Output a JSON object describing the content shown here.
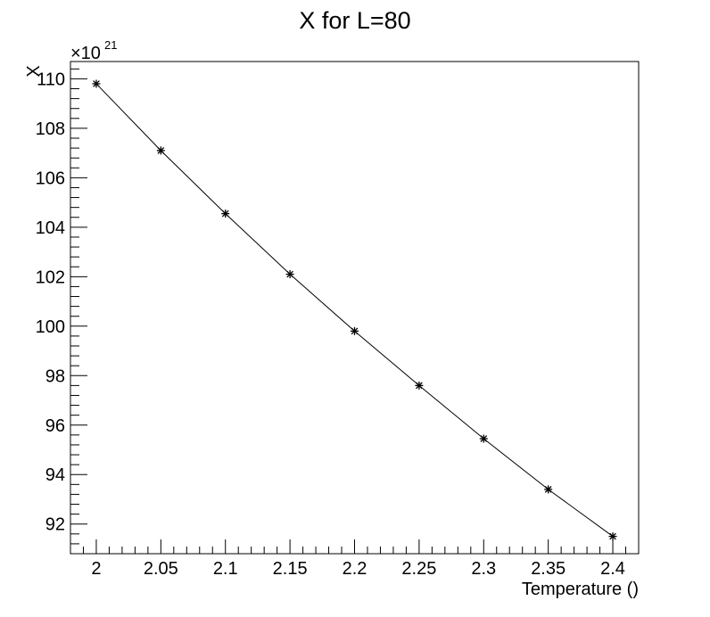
{
  "chart_data": {
    "type": "line",
    "title": "X for L=80",
    "xlabel": "Temperature ()",
    "ylabel": "X",
    "y_exponent_base": "×10",
    "y_exponent_power": "21",
    "x": [
      2.0,
      2.05,
      2.1,
      2.15,
      2.2,
      2.25,
      2.3,
      2.35,
      2.4
    ],
    "series": [
      {
        "values": [
          109.8,
          107.1,
          104.55,
          102.1,
          99.8,
          97.6,
          95.45,
          93.4,
          91.5
        ]
      }
    ],
    "xlim": [
      1.98,
      2.42
    ],
    "ylim": [
      90.8,
      110.7
    ],
    "x_ticks": [
      2.0,
      2.05,
      2.1,
      2.15,
      2.2,
      2.25,
      2.3,
      2.35,
      2.4
    ],
    "x_tick_labels": [
      "2",
      "2.05",
      "2.1",
      "2.15",
      "2.2",
      "2.25",
      "2.3",
      "2.35",
      "2.4"
    ],
    "y_ticks": [
      92,
      94,
      96,
      98,
      100,
      102,
      104,
      106,
      108,
      110
    ],
    "y_tick_labels": [
      "92",
      "94",
      "96",
      "98",
      "100",
      "102",
      "104",
      "106",
      "108",
      "110"
    ],
    "marker": "asterisk",
    "grid": false,
    "legend": "none",
    "line_color": "#000000"
  }
}
